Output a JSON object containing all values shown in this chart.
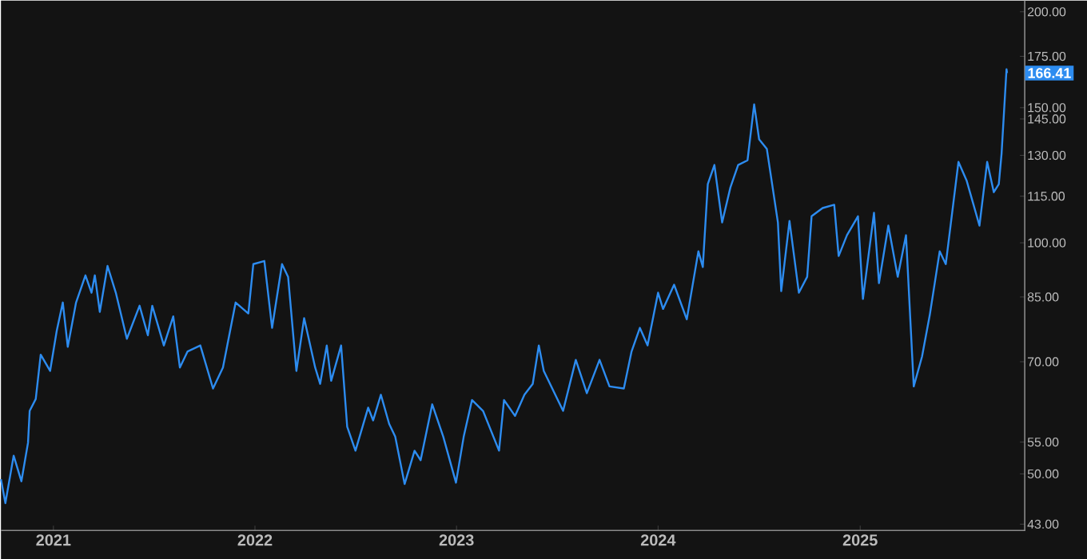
{
  "chart_data": {
    "type": "line",
    "color": "#2d8cf0",
    "log": "y",
    "grid": false,
    "marker": "none",
    "line_style": "solid",
    "xlim": [
      "2020-09-28",
      "2025-10-26"
    ],
    "xticks": [
      "2021",
      "2022",
      "2023",
      "2024",
      "2025"
    ],
    "ylim": [
      42.2,
      206.8
    ],
    "yticks": [
      {
        "value": 43,
        "label": "43.00"
      },
      {
        "value": 50,
        "label": "50.00"
      },
      {
        "value": 55,
        "label": "55.00"
      },
      {
        "value": 70,
        "label": "70.00"
      },
      {
        "value": 85,
        "label": "85.00"
      },
      {
        "value": 100,
        "label": "100.00"
      },
      {
        "value": 115,
        "label": "115.00"
      },
      {
        "value": 130,
        "label": "130.00"
      },
      {
        "value": 145,
        "label": "145.00"
      },
      {
        "value": 150,
        "label": "150.00"
      },
      {
        "value": 175,
        "label": "175.00"
      },
      {
        "value": 200,
        "label": "200.00"
      }
    ],
    "annotations": [
      {
        "text": "166.41",
        "y": 166.41
      }
    ],
    "x": [
      "2020-09-28",
      "2020-10-06",
      "2020-10-21",
      "2020-11-04",
      "2020-11-16",
      "2020-11-19",
      "2020-11-30",
      "2020-12-09",
      "2020-12-26",
      "2021-01-07",
      "2021-01-18",
      "2021-01-27",
      "2021-02-11",
      "2021-02-28",
      "2021-03-11",
      "2021-03-17",
      "2021-03-26",
      "2021-04-09",
      "2021-04-24",
      "2021-05-14",
      "2021-06-06",
      "2021-06-21",
      "2021-06-29",
      "2021-07-20",
      "2021-08-06",
      "2021-08-18",
      "2021-09-01",
      "2021-09-24",
      "2021-10-17",
      "2021-11-04",
      "2021-11-27",
      "2021-12-20",
      "2021-12-29",
      "2022-01-18",
      "2022-02-01",
      "2022-02-19",
      "2022-03-02",
      "2022-03-17",
      "2022-03-31",
      "2022-04-20",
      "2022-04-29",
      "2022-05-11",
      "2022-05-19",
      "2022-06-06",
      "2022-06-17",
      "2022-07-02",
      "2022-07-25",
      "2022-08-03",
      "2022-08-17",
      "2022-09-01",
      "2022-09-12",
      "2022-09-29",
      "2022-10-17",
      "2022-10-28",
      "2022-11-18",
      "2022-12-08",
      "2022-12-31",
      "2023-01-14",
      "2023-01-29",
      "2023-02-18",
      "2023-03-19",
      "2023-03-28",
      "2023-04-17",
      "2023-05-04",
      "2023-05-19",
      "2023-05-30",
      "2023-06-08",
      "2023-07-13",
      "2023-08-05",
      "2023-08-25",
      "2023-09-17",
      "2023-10-05",
      "2023-10-31",
      "2023-11-14",
      "2023-11-29",
      "2023-12-13",
      "2024-01-01",
      "2024-01-10",
      "2024-01-30",
      "2024-02-22",
      "2024-03-14",
      "2024-03-22",
      "2024-03-31",
      "2024-04-12",
      "2024-04-26",
      "2024-05-11",
      "2024-05-25",
      "2024-06-11",
      "2024-06-23",
      "2024-07-02",
      "2024-07-16",
      "2024-08-05",
      "2024-08-11",
      "2024-08-26",
      "2024-09-12",
      "2024-09-27",
      "2024-10-05",
      "2024-10-25",
      "2024-11-15",
      "2024-11-23",
      "2024-12-08",
      "2024-12-28",
      "2025-01-06",
      "2025-01-26",
      "2025-02-04",
      "2025-02-21",
      "2025-03-10",
      "2025-03-25",
      "2025-04-08",
      "2025-04-23",
      "2025-05-07",
      "2025-05-25",
      "2025-06-05",
      "2025-06-28",
      "2025-07-13",
      "2025-08-05",
      "2025-08-19",
      "2025-08-31",
      "2025-09-09",
      "2025-09-14",
      "2025-09-23",
      "2025-09-24"
    ],
    "values": [
      49.2,
      45.8,
      52.8,
      48.9,
      54.9,
      60.4,
      62.6,
      71.5,
      68.1,
      76.8,
      83.6,
      73.2,
      83.6,
      90.7,
      86.1,
      90.7,
      81.3,
      93.3,
      86.1,
      75.0,
      82.8,
      75.8,
      82.8,
      73.5,
      80.2,
      68.8,
      72.2,
      73.5,
      64.6,
      68.8,
      83.6,
      80.9,
      93.8,
      94.7,
      77.5,
      93.8,
      90.3,
      68.1,
      79.8,
      68.8,
      65.5,
      73.5,
      66.1,
      73.5,
      57.6,
      53.6,
      61.0,
      58.7,
      63.4,
      58.1,
      55.9,
      48.5,
      53.6,
      52.1,
      61.6,
      55.9,
      48.7,
      55.9,
      62.4,
      60.4,
      53.6,
      62.4,
      59.5,
      63.4,
      65.5,
      73.5,
      68.1,
      60.4,
      70.4,
      63.7,
      70.4,
      65.0,
      64.6,
      72.2,
      77.5,
      73.5,
      86.1,
      82.0,
      88.2,
      79.5,
      97.5,
      93.0,
      119.2,
      126.3,
      106.3,
      118.1,
      126.3,
      128.1,
      151.5,
      136.4,
      132.5,
      106.3,
      86.5,
      106.8,
      86.1,
      90.3,
      108.3,
      111.0,
      112.1,
      96.1,
      102.3,
      108.3,
      84.5,
      109.4,
      88.6,
      105.3,
      90.3,
      102.3,
      65.0,
      71.1,
      80.5,
      97.5,
      93.8,
      127.5,
      120.4,
      105.3,
      127.5,
      116.4,
      119.2,
      130.5,
      168.3,
      166.41
    ]
  }
}
